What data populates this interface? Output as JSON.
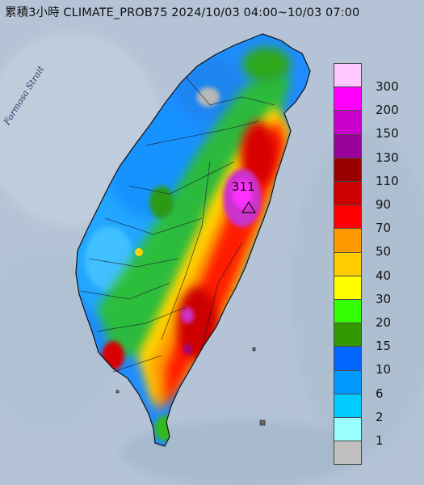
{
  "title": "累積3小時 CLIMATE_PROB75 2024/10/03 04:00~10/03 07:00",
  "strait_label": "Formosa Strait",
  "max_value": "311",
  "legend": [
    {
      "label": "300",
      "color": "#ffc8ff"
    },
    {
      "label": "200",
      "color": "#ff00ff"
    },
    {
      "label": "150",
      "color": "#cc00cc"
    },
    {
      "label": "130",
      "color": "#990099"
    },
    {
      "label": "110",
      "color": "#990000"
    },
    {
      "label": "90",
      "color": "#cc0000"
    },
    {
      "label": "70",
      "color": "#ff0000"
    },
    {
      "label": "50",
      "color": "#ff9900"
    },
    {
      "label": "40",
      "color": "#ffcc00"
    },
    {
      "label": "30",
      "color": "#ffff00"
    },
    {
      "label": "20",
      "color": "#33ff00"
    },
    {
      "label": "15",
      "color": "#339900"
    },
    {
      "label": "10",
      "color": "#0066ff"
    },
    {
      "label": "6",
      "color": "#0099ff"
    },
    {
      "label": "2",
      "color": "#00ccff"
    },
    {
      "label": "1",
      "color": "#99ffff"
    },
    {
      "label": "",
      "color": "#c0c0c0"
    }
  ]
}
